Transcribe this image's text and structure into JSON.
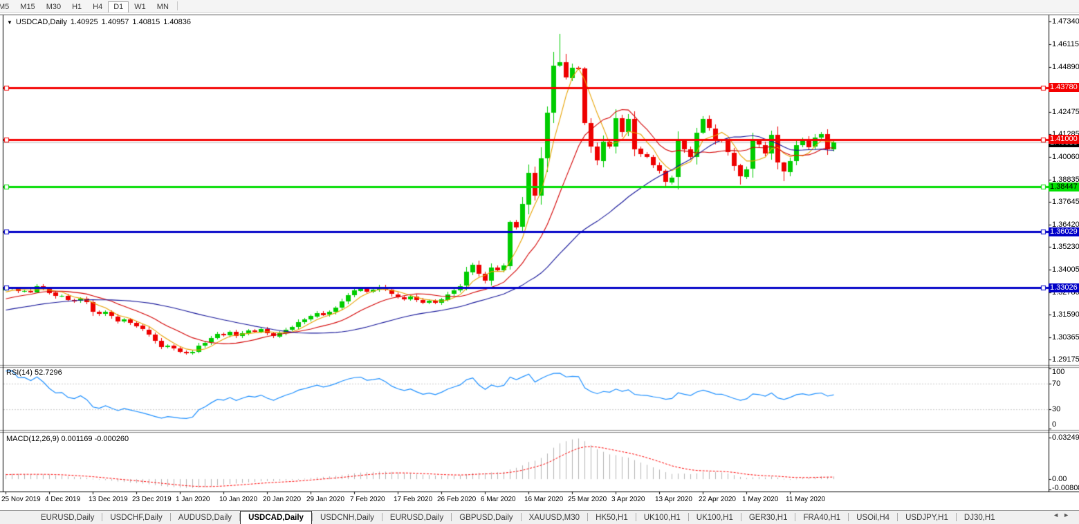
{
  "toolbar": {
    "timeframes": [
      "M5",
      "M15",
      "M30",
      "H1",
      "H4",
      "D1",
      "W1",
      "MN"
    ],
    "active": "D1"
  },
  "title": {
    "symbol_period": "USDCAD,Daily",
    "open": "1.40925",
    "high": "1.40957",
    "low": "1.40815",
    "close": "1.40836",
    "dropdown_icon": "▼"
  },
  "rsi_pane": {
    "label": "RSI(14) 52.7296",
    "axis": [
      {
        "label": "100",
        "value": 100
      },
      {
        "label": "70",
        "value": 70
      },
      {
        "label": "30",
        "value": 30
      },
      {
        "label": "0",
        "value": 0
      }
    ],
    "levels": [
      70,
      30
    ],
    "line_color": "#1E90FF",
    "level_color": "#C8C8C8"
  },
  "macd_pane": {
    "label": "MACD(12,26,9) 0.001169 -0.000260",
    "axis": [
      {
        "label": "0.032493",
        "value": 0.032493
      },
      {
        "label": "0.00",
        "value": 0
      },
      {
        "label": "-0.008086",
        "value": -0.008086
      }
    ],
    "max": 0.032493,
    "min": -0.008086,
    "histogram_color": "#B4B4B4",
    "signal_color": "#FF0000"
  },
  "price_axis": {
    "ticks": [
      "1.47340",
      "1.46115",
      "1.44890",
      "1.43665",
      "1.42475",
      "1.41285",
      "1.40060",
      "1.38835",
      "1.37645",
      "1.36420",
      "1.35230",
      "1.34005",
      "1.32780",
      "1.31590",
      "1.30365",
      "1.29175"
    ],
    "boxes": [
      {
        "label": "1.40836",
        "price": 1.40836,
        "bg": "#000000",
        "fg": "#FFFFFF",
        "z": 1
      },
      {
        "label": "1.43780",
        "price": 1.4378,
        "bg": "#F40000",
        "fg": "#FFFFFF",
        "z": 2
      },
      {
        "label": "1.41000",
        "price": 1.41,
        "bg": "#F40000",
        "fg": "#FFFFFF",
        "z": 2
      },
      {
        "label": "1.38447",
        "price": 1.38447,
        "bg": "#00E000",
        "fg": "#000000",
        "z": 2
      },
      {
        "label": "1.36029",
        "price": 1.36029,
        "bg": "#0000C8",
        "fg": "#FFFFFF",
        "z": 2
      },
      {
        "label": "1.33026",
        "price": 1.33026,
        "bg": "#0000C8",
        "fg": "#FFFFFF",
        "z": 2
      }
    ]
  },
  "date_axis": {
    "labels": [
      "25 Nov 2019",
      "4 Dec 2019",
      "13 Dec 2019",
      "23 Dec 2019",
      "1 Jan 2020",
      "10 Jan 2020",
      "20 Jan 2020",
      "29 Jan 2020",
      "7 Feb 2020",
      "17 Feb 2020",
      "26 Feb 2020",
      "6 Mar 2020",
      "16 Mar 2020",
      "25 Mar 2020",
      "3 Apr 2020",
      "13 Apr 2020",
      "22 Apr 2020",
      "1 May 2020",
      "11 May 2020"
    ]
  },
  "tabs": {
    "items": [
      "EURUSD,Daily",
      "USDCHF,Daily",
      "AUDUSD,Daily",
      "USDCAD,Daily",
      "USDCNH,Daily",
      "EURUSD,Daily",
      "GBPUSD,Daily",
      "XAUUSD,M30",
      "HK50,H1",
      "UK100,H1",
      "UK100,H1",
      "GER30,H1",
      "FRA40,H1",
      "USOil,H4",
      "USDJPY,H1",
      "DJ30,H1"
    ],
    "active_index": 3,
    "scroll_left_icon": "◄",
    "scroll_right_icon": "►"
  },
  "chart_data": {
    "type": "candlestick",
    "symbol": "USDCAD",
    "timeframe": "Daily",
    "colors": {
      "up": "#00CC00",
      "down": "#EE0000",
      "current_price_line": "#C0C0C0",
      "background": "#FFFFFF"
    },
    "price_range_top_label": 1.4734,
    "price_range_bottom_label": 1.29175,
    "current_price": 1.40836,
    "hlines": [
      {
        "price": 1.4378,
        "color": "#F40000",
        "width": 3
      },
      {
        "price": 1.41,
        "color": "#F40000",
        "width": 3
      },
      {
        "price": 1.38447,
        "color": "#00DC00",
        "width": 3
      },
      {
        "price": 1.36029,
        "color": "#0000C8",
        "width": 3
      },
      {
        "price": 1.33026,
        "color": "#0000C8",
        "width": 3
      }
    ],
    "moving_averages": [
      {
        "period": 5,
        "color": "#E8A200"
      },
      {
        "period": 13,
        "color": "#D40000"
      },
      {
        "period": 34,
        "color": "#16169A"
      }
    ],
    "pad_closes": [
      1.306,
      1.3068,
      1.3062,
      1.3075,
      1.3085,
      1.308,
      1.3092,
      1.31,
      1.3095,
      1.3108,
      1.3115,
      1.311,
      1.3122,
      1.313,
      1.3126,
      1.3138,
      1.3145,
      1.314,
      1.3152,
      1.316,
      1.3155,
      1.3168,
      1.3175,
      1.317,
      1.3182,
      1.319,
      1.3186,
      1.3198,
      1.3205,
      1.32,
      1.3212,
      1.322,
      1.3216,
      1.3228,
      1.3236,
      1.3246,
      1.3258,
      1.327,
      1.3282,
      1.3292
    ],
    "closes": [
      1.3298,
      1.33,
      1.3285,
      1.3287,
      1.328,
      1.3312,
      1.3298,
      1.3276,
      1.3258,
      1.326,
      1.3238,
      1.3232,
      1.3245,
      1.3225,
      1.3172,
      1.316,
      1.3172,
      1.3148,
      1.3122,
      1.3132,
      1.3115,
      1.3098,
      1.3078,
      1.3052,
      1.3018,
      1.2985,
      1.2992,
      1.2978,
      1.296,
      1.2952,
      1.2958,
      1.2992,
      1.3008,
      1.3032,
      1.3055,
      1.3048,
      1.3066,
      1.3042,
      1.3058,
      1.3072,
      1.3066,
      1.308,
      1.3058,
      1.3042,
      1.306,
      1.3078,
      1.3092,
      1.3118,
      1.3132,
      1.315,
      1.3168,
      1.3158,
      1.3172,
      1.3195,
      1.3228,
      1.3262,
      1.3288,
      1.3298,
      1.3282,
      1.3292,
      1.3308,
      1.3292,
      1.3268,
      1.3252,
      1.3242,
      1.3256,
      1.3238,
      1.3222,
      1.3232,
      1.3222,
      1.324,
      1.3268,
      1.3288,
      1.3312,
      1.3388,
      1.3428,
      1.3378,
      1.3342,
      1.3412,
      1.3396,
      1.3422,
      1.3658,
      1.3628,
      1.3752,
      1.3922,
      1.3798,
      1.3998,
      1.4243,
      1.4496,
      1.4513,
      1.443,
      1.4486,
      1.448,
      1.4187,
      1.406,
      1.3985,
      1.4089,
      1.4062,
      1.4215,
      1.414,
      1.4212,
      1.405,
      1.402,
      1.4005,
      1.396,
      1.393,
      1.387,
      1.3895,
      1.409,
      1.4045,
      1.4005,
      1.4135,
      1.421,
      1.416,
      1.4095,
      1.409,
      1.403,
      1.396,
      1.39,
      1.394,
      1.409,
      1.407,
      1.4025,
      1.4125,
      1.3975,
      1.3925,
      1.3985,
      1.407,
      1.41,
      1.406,
      1.411,
      1.4128,
      1.4048,
      1.4084
    ],
    "wick_overrides": {
      "5": [
        0.001,
        0.0004
      ],
      "81": [
        0.0006,
        0.002
      ],
      "89": [
        0.0155,
        0.0006
      ],
      "90": [
        0.0045,
        0.001
      ],
      "93": [
        0.0008,
        0.0012
      ],
      "106": [
        0.0008,
        0.003
      ],
      "112": [
        0.0015,
        0.0008
      ],
      "118": [
        0.0008,
        0.0042
      ],
      "125": [
        0.0006,
        0.0048
      ]
    }
  }
}
